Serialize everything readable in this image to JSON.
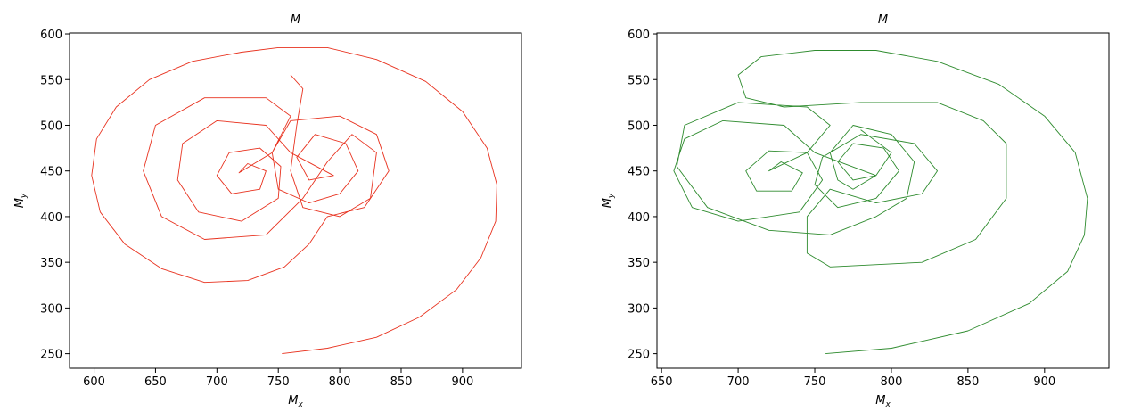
{
  "chart_data": [
    {
      "type": "line",
      "title": "M",
      "xlabel": "Mx",
      "ylabel": "My",
      "xlim": [
        580,
        948
      ],
      "ylim": [
        234,
        601
      ],
      "xticks": [
        600,
        650,
        700,
        750,
        800,
        850,
        900
      ],
      "yticks": [
        250,
        300,
        350,
        400,
        450,
        500,
        550,
        600
      ],
      "series": [
        {
          "color": "#e8321f",
          "x": [
            753,
            790,
            830,
            865,
            895,
            915,
            927,
            928,
            920,
            900,
            870,
            830,
            790,
            750,
            720,
            680,
            645,
            618,
            602,
            598,
            605,
            625,
            655,
            690,
            725,
            755,
            775,
            790,
            820,
            840,
            830,
            800,
            760,
            745,
            750,
            775,
            800,
            815,
            805,
            780,
            765,
            775,
            795,
            760,
            740,
            700,
            672,
            668,
            685,
            720,
            750,
            752,
            735,
            710,
            700,
            712,
            735,
            740,
            725,
            718,
            745,
            760,
            740,
            690,
            650,
            640,
            655,
            690,
            740,
            770,
            790,
            810,
            830,
            825,
            800,
            770,
            760,
            765,
            770,
            760
          ],
          "values": [
            250,
            256,
            268,
            290,
            320,
            355,
            395,
            435,
            475,
            515,
            548,
            572,
            585,
            585,
            580,
            570,
            550,
            520,
            485,
            445,
            405,
            370,
            343,
            328,
            330,
            345,
            370,
            400,
            410,
            450,
            490,
            510,
            505,
            470,
            430,
            415,
            425,
            450,
            480,
            490,
            465,
            440,
            445,
            470,
            500,
            505,
            480,
            440,
            405,
            395,
            420,
            455,
            475,
            470,
            445,
            425,
            430,
            450,
            458,
            448,
            470,
            510,
            530,
            530,
            500,
            450,
            400,
            375,
            380,
            420,
            460,
            490,
            470,
            420,
            400,
            410,
            450,
            500,
            540,
            555
          ]
        }
      ]
    },
    {
      "type": "line",
      "title": "M",
      "xlabel": "Mx",
      "ylabel": "My",
      "xlim": [
        647,
        942
      ],
      "ylim": [
        234,
        601
      ],
      "xticks": [
        650,
        700,
        750,
        800,
        850,
        900
      ],
      "yticks": [
        250,
        300,
        350,
        400,
        450,
        500,
        550,
        600
      ],
      "series": [
        {
          "color": "#2e8b2e",
          "x": [
            757,
            800,
            850,
            890,
            915,
            926,
            928,
            920,
            900,
            870,
            830,
            790,
            750,
            715,
            700,
            705,
            730,
            780,
            830,
            860,
            875,
            875,
            855,
            820,
            760,
            745,
            745,
            760,
            790,
            820,
            830,
            815,
            780,
            755,
            750,
            765,
            790,
            805,
            795,
            775,
            765,
            775,
            790,
            750,
            730,
            690,
            665,
            658,
            670,
            700,
            740,
            755,
            745,
            720,
            705,
            712,
            735,
            742,
            728,
            720,
            745,
            760,
            745,
            700,
            665,
            660,
            680,
            720,
            760,
            790,
            810,
            815,
            800,
            775,
            760,
            765,
            775,
            790,
            800,
            780
          ],
          "values": [
            250,
            256,
            275,
            305,
            340,
            380,
            420,
            470,
            510,
            545,
            570,
            582,
            582,
            575,
            555,
            530,
            520,
            525,
            525,
            505,
            480,
            420,
            375,
            350,
            345,
            360,
            400,
            430,
            415,
            425,
            450,
            480,
            490,
            465,
            435,
            410,
            420,
            450,
            475,
            480,
            460,
            440,
            445,
            470,
            500,
            505,
            485,
            450,
            410,
            395,
            405,
            440,
            470,
            472,
            450,
            428,
            428,
            448,
            460,
            450,
            470,
            500,
            520,
            525,
            500,
            455,
            410,
            385,
            380,
            400,
            420,
            460,
            490,
            500,
            470,
            440,
            430,
            445,
            470,
            495
          ]
        }
      ]
    }
  ]
}
